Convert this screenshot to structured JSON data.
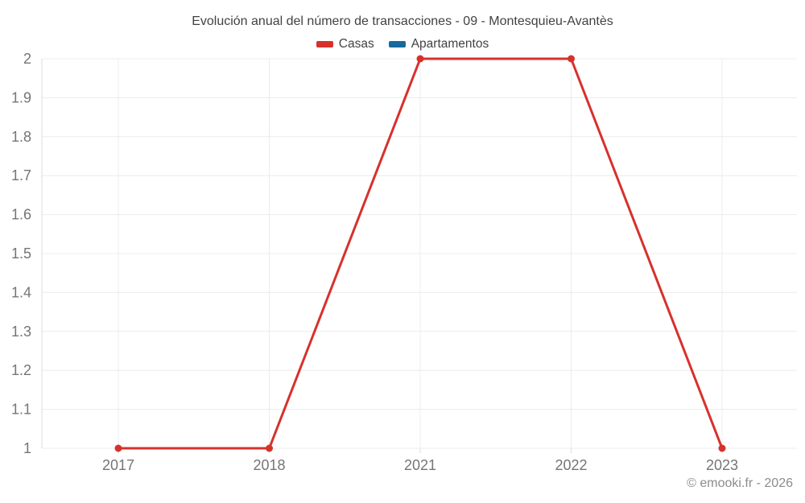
{
  "chart_data": {
    "type": "line",
    "title": "Evolución anual del número de transacciones - 09 - Montesquieu-Avantès",
    "categories": [
      "2017",
      "2018",
      "2021",
      "2022",
      "2023"
    ],
    "series": [
      {
        "name": "Casas",
        "color": "#d7312c",
        "values": [
          1,
          1,
          2,
          2,
          1
        ]
      },
      {
        "name": "Apartamentos",
        "color": "#17699e",
        "values": []
      }
    ],
    "ylim": [
      1,
      2
    ],
    "ytick_step": 0.1,
    "yticks": [
      "1",
      "1.1",
      "1.2",
      "1.3",
      "1.4",
      "1.5",
      "1.6",
      "1.7",
      "1.8",
      "1.9",
      "2"
    ],
    "xlabel": "",
    "ylabel": "",
    "grid": true,
    "legend_position": "top"
  },
  "footer": {
    "credit": "© emooki.fr - 2026"
  },
  "colors": {
    "background": "#ffffff",
    "grid": "#ececec",
    "axis": "#dcdcdc",
    "tick_text": "#757575",
    "title_text": "#424242",
    "credit_text": "#8c8c8c",
    "casas_red": "#d7312c",
    "apartamentos_blue": "#17699e"
  }
}
